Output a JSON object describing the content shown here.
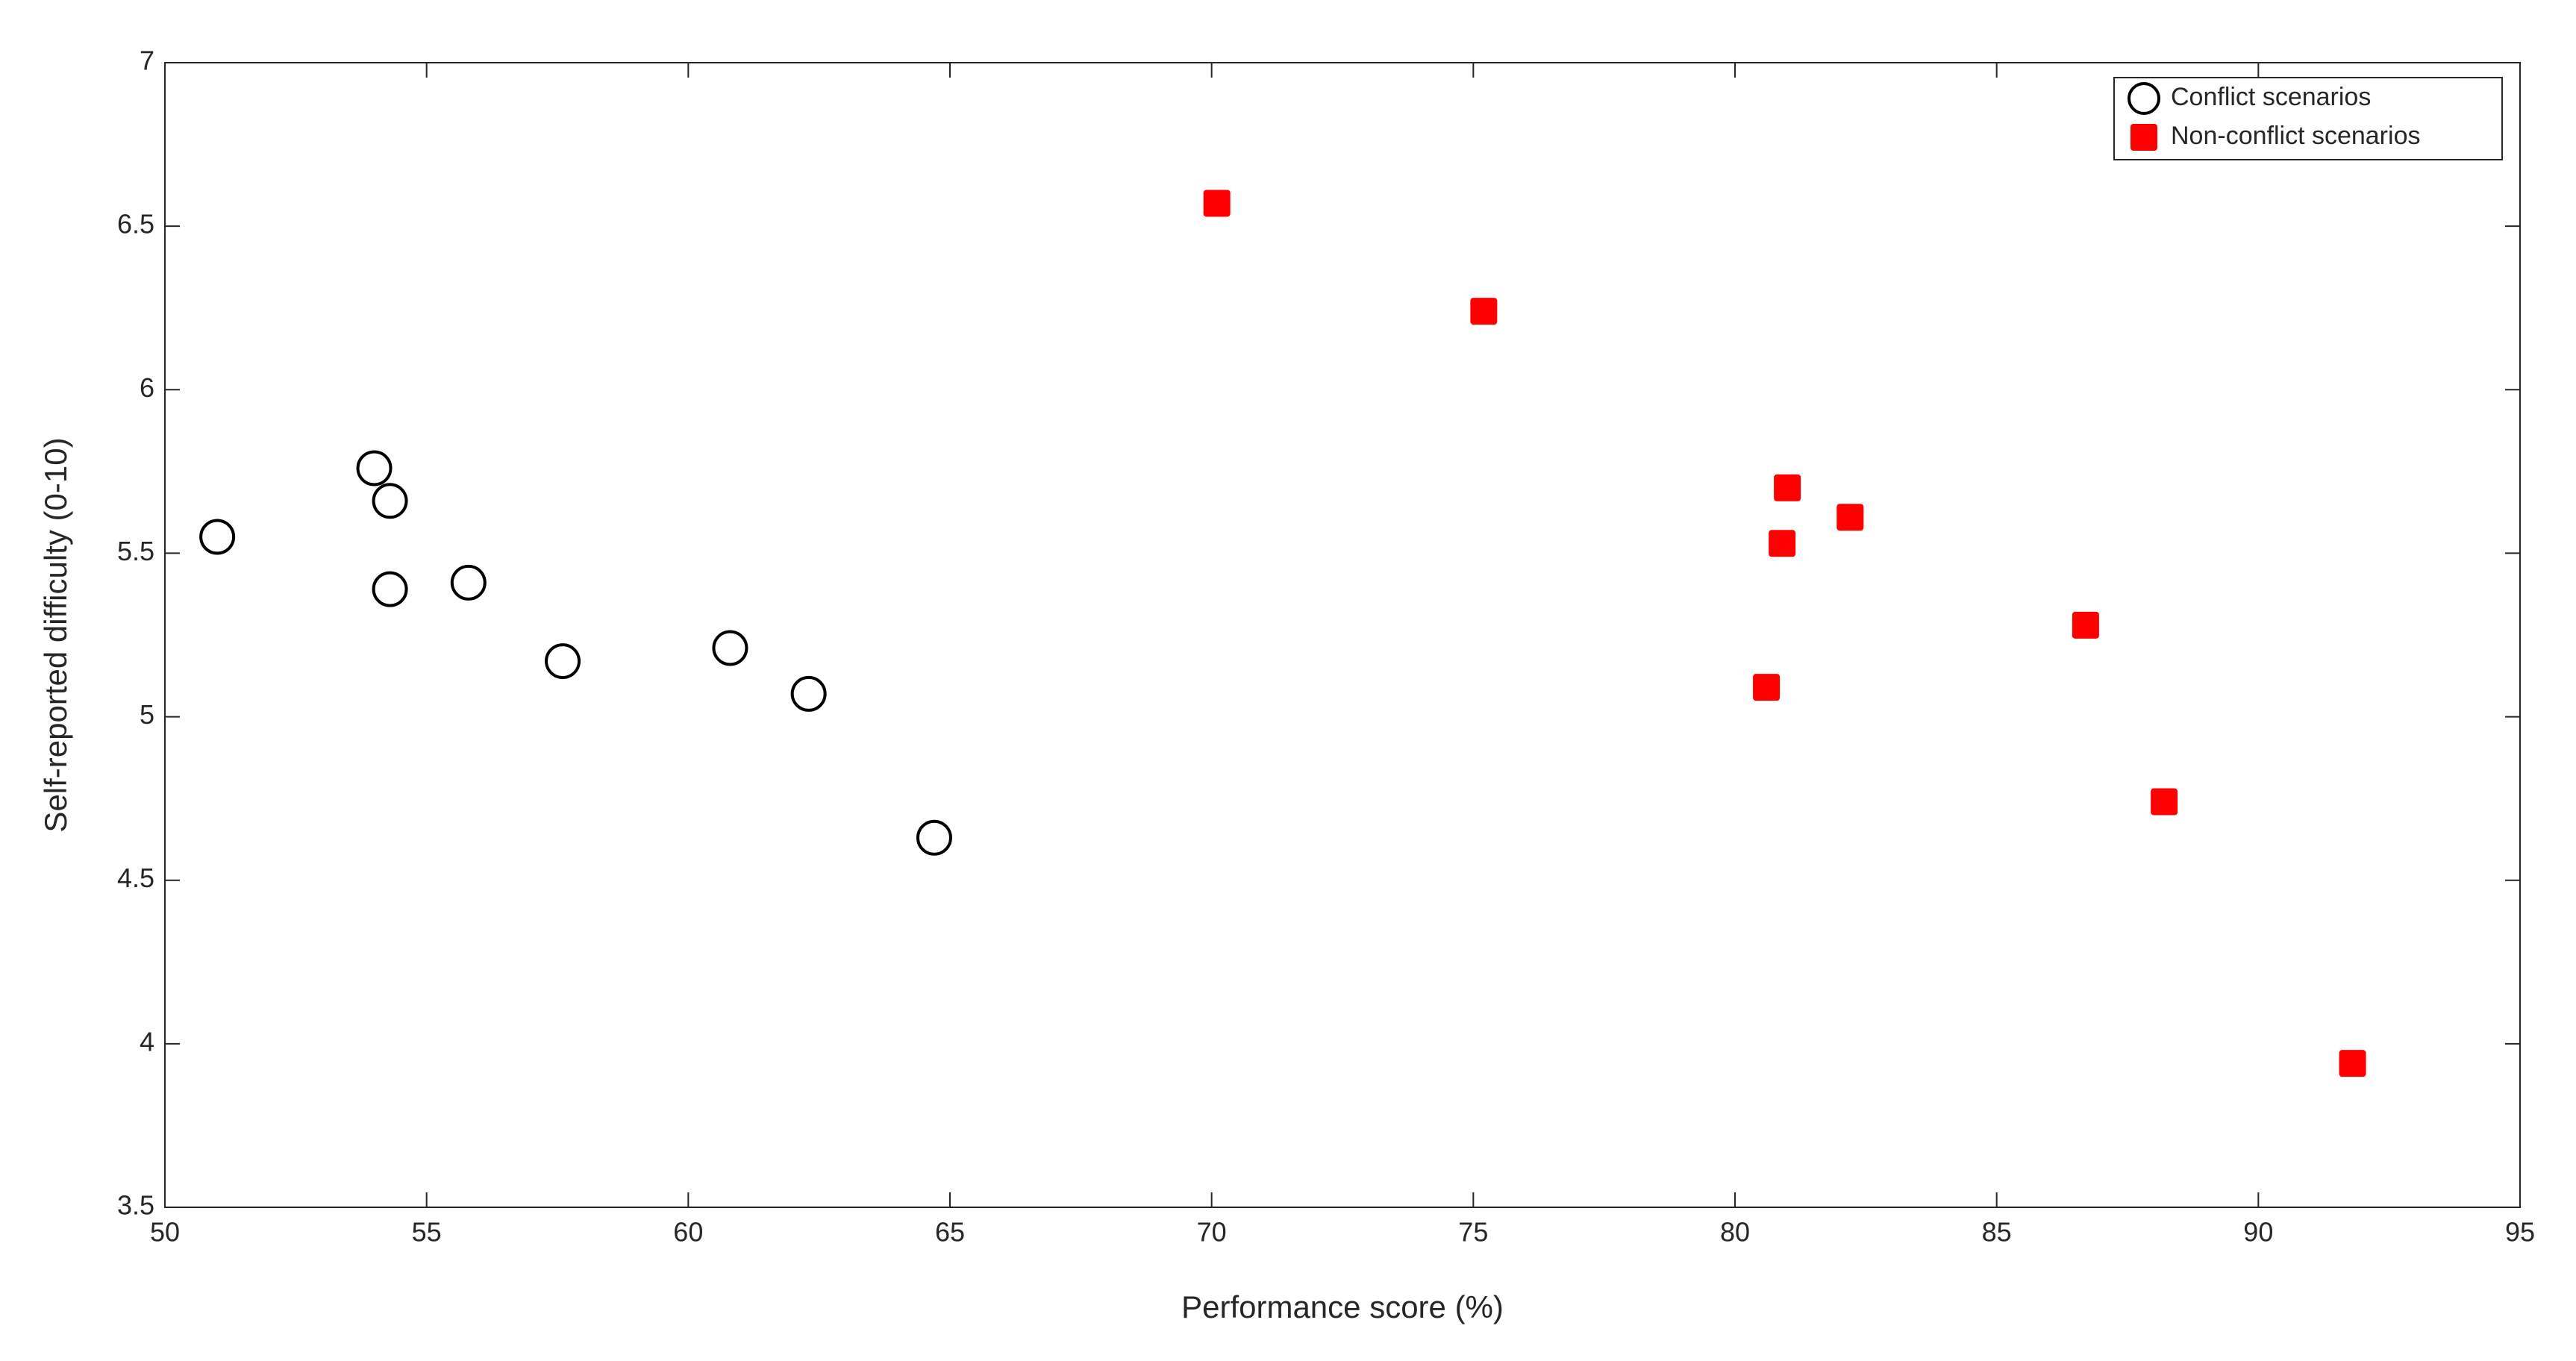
{
  "chart_data": {
    "type": "scatter",
    "x_label": "Performance score (%)",
    "y_label": "Self-reported difficulty (0-10)",
    "xlim": [
      50,
      95
    ],
    "xticks": [
      50,
      55,
      60,
      65,
      70,
      75,
      80,
      85,
      90,
      95
    ],
    "ylim": [
      3.5,
      7
    ],
    "yticks": [
      3.5,
      4,
      4.5,
      5,
      5.5,
      6,
      6.5,
      7
    ],
    "legend": "upper right",
    "series": [
      {
        "name": "Conflict scenarios",
        "color": "#000000",
        "marker": "circle",
        "x": [
          51.0,
          54.0,
          54.3,
          54.3,
          55.8,
          57.6,
          60.8,
          62.3,
          64.7
        ],
        "values": [
          5.55,
          5.76,
          5.66,
          5.39,
          5.41,
          5.17,
          5.21,
          5.07,
          4.63
        ]
      },
      {
        "name": "Non-conflict scenarios",
        "color": "#ff0000",
        "marker": "square",
        "x": [
          70.1,
          75.2,
          81.0,
          80.9,
          82.2,
          80.6,
          86.7,
          88.2,
          91.8
        ],
        "values": [
          6.57,
          6.24,
          5.7,
          5.53,
          5.61,
          5.09,
          5.28,
          4.74,
          3.94
        ]
      }
    ]
  }
}
